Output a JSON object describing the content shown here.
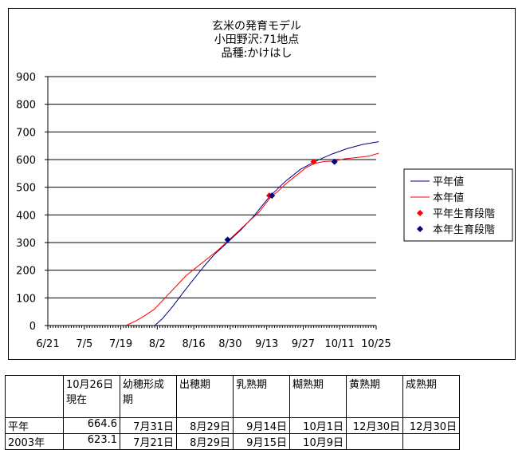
{
  "chart_data": {
    "type": "line",
    "title_lines": [
      "玄米の発育モデル",
      "小田野沢:71地点",
      "品種:かけはし"
    ],
    "ylim": [
      0,
      900
    ],
    "y_ticks": [
      "0",
      "100",
      "200",
      "300",
      "400",
      "500",
      "600",
      "700",
      "800",
      "900"
    ],
    "x_ticks": [
      "6/21",
      "7/5",
      "7/19",
      "8/2",
      "8/16",
      "8/30",
      "9/13",
      "9/27",
      "10/11",
      "10/25"
    ],
    "x_start": "6/21",
    "grid": "horizontal",
    "legend_position": "right",
    "series": [
      {
        "name": "平年値",
        "color": "#000080",
        "points": [
          [
            "8/1",
            0
          ],
          [
            "8/4",
            25
          ],
          [
            "8/8",
            70
          ],
          [
            "8/12",
            120
          ],
          [
            "8/16",
            168
          ],
          [
            "8/20",
            215
          ],
          [
            "8/24",
            258
          ],
          [
            "8/28",
            292
          ],
          [
            "8/30",
            310
          ],
          [
            "9/3",
            345
          ],
          [
            "9/8",
            395
          ],
          [
            "9/14",
            465
          ],
          [
            "9/20",
            520
          ],
          [
            "9/26",
            565
          ],
          [
            "10/2",
            595
          ],
          [
            "10/8",
            620
          ],
          [
            "10/14",
            640
          ],
          [
            "10/20",
            655
          ],
          [
            "10/26",
            664.6
          ]
        ]
      },
      {
        "name": "本年値",
        "color": "#FF0000",
        "points": [
          [
            "7/21",
            0
          ],
          [
            "7/25",
            18
          ],
          [
            "7/28",
            35
          ],
          [
            "8/1",
            60
          ],
          [
            "8/5",
            100
          ],
          [
            "8/9",
            140
          ],
          [
            "8/13",
            180
          ],
          [
            "8/17",
            210
          ],
          [
            "8/21",
            240
          ],
          [
            "8/25",
            270
          ],
          [
            "8/29",
            305
          ],
          [
            "9/2",
            340
          ],
          [
            "9/6",
            375
          ],
          [
            "9/10",
            410
          ],
          [
            "9/15",
            470
          ],
          [
            "9/17",
            482
          ],
          [
            "9/20",
            510
          ],
          [
            "9/24",
            540
          ],
          [
            "9/28",
            570
          ],
          [
            "10/1",
            585
          ],
          [
            "10/5",
            593
          ],
          [
            "10/9",
            595
          ],
          [
            "10/13",
            603
          ],
          [
            "10/18",
            608
          ],
          [
            "10/22",
            612
          ],
          [
            "10/26",
            623.1
          ]
        ]
      }
    ],
    "markers": [
      {
        "name": "平年生育段階",
        "color": "#FF0000",
        "shape": "diamond",
        "points": [
          [
            "8/29",
            310
          ],
          [
            "9/14",
            470
          ],
          [
            "10/1",
            592
          ]
        ]
      },
      {
        "name": "本年生育段階",
        "color": "#000080",
        "shape": "diamond",
        "points": [
          [
            "8/29",
            310
          ],
          [
            "9/15",
            470
          ],
          [
            "10/9",
            592
          ]
        ]
      }
    ]
  },
  "table": {
    "headers": [
      "",
      "10月26日\n現在",
      "幼穂形成\n期",
      "出穂期",
      "乳熟期",
      "糊熟期",
      "黄熟期",
      "成熟期"
    ],
    "rows": [
      [
        "平年",
        "664.6",
        "7月31日",
        "8月29日",
        "9月14日",
        "10月1日",
        "12月30日",
        "12月30日"
      ],
      [
        "2003年",
        "623.1",
        "7月21日",
        "8月29日",
        "9月15日",
        "10月9日",
        "",
        ""
      ]
    ]
  }
}
